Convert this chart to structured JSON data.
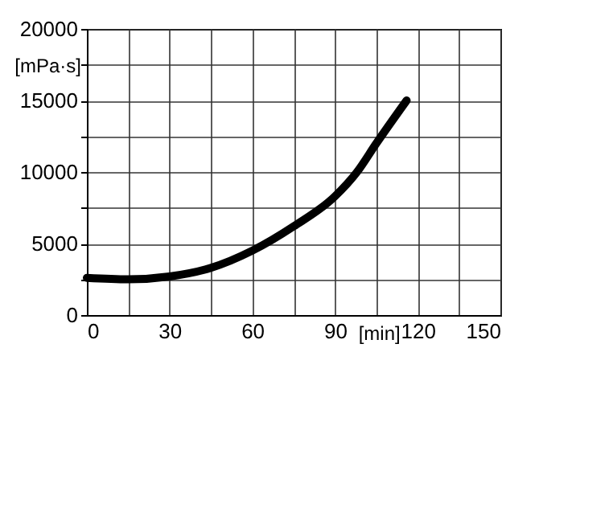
{
  "chart_data": {
    "type": "line",
    "xlabel": "[min]",
    "ylabel": "[mPa·s]",
    "x": [
      0,
      15,
      30,
      45,
      60,
      75,
      90,
      98,
      105,
      116
    ],
    "series": [
      {
        "color": "#000000",
        "values": [
          2600,
          2500,
          2700,
          3300,
          4500,
          6200,
          8300,
          10000,
          12000,
          15000
        ]
      }
    ],
    "xlim": [
      0,
      150
    ],
    "xticks": [
      0,
      {
        "value": 15,
        "label": null
      },
      30,
      {
        "value": 45,
        "label": null
      },
      60,
      {
        "value": 75,
        "label": null
      },
      90,
      {
        "value": 105,
        "label": null
      },
      120,
      {
        "value": 135,
        "label": null
      },
      150
    ],
    "ylim": [
      0,
      20000
    ],
    "yticks": [
      0,
      {
        "value": 2500,
        "label": null
      },
      5000,
      {
        "value": 7500,
        "label": null
      },
      10000,
      {
        "value": 12500,
        "label": null
      },
      15000,
      {
        "value": 17500,
        "label": null
      },
      20000
    ],
    "grid": true
  }
}
